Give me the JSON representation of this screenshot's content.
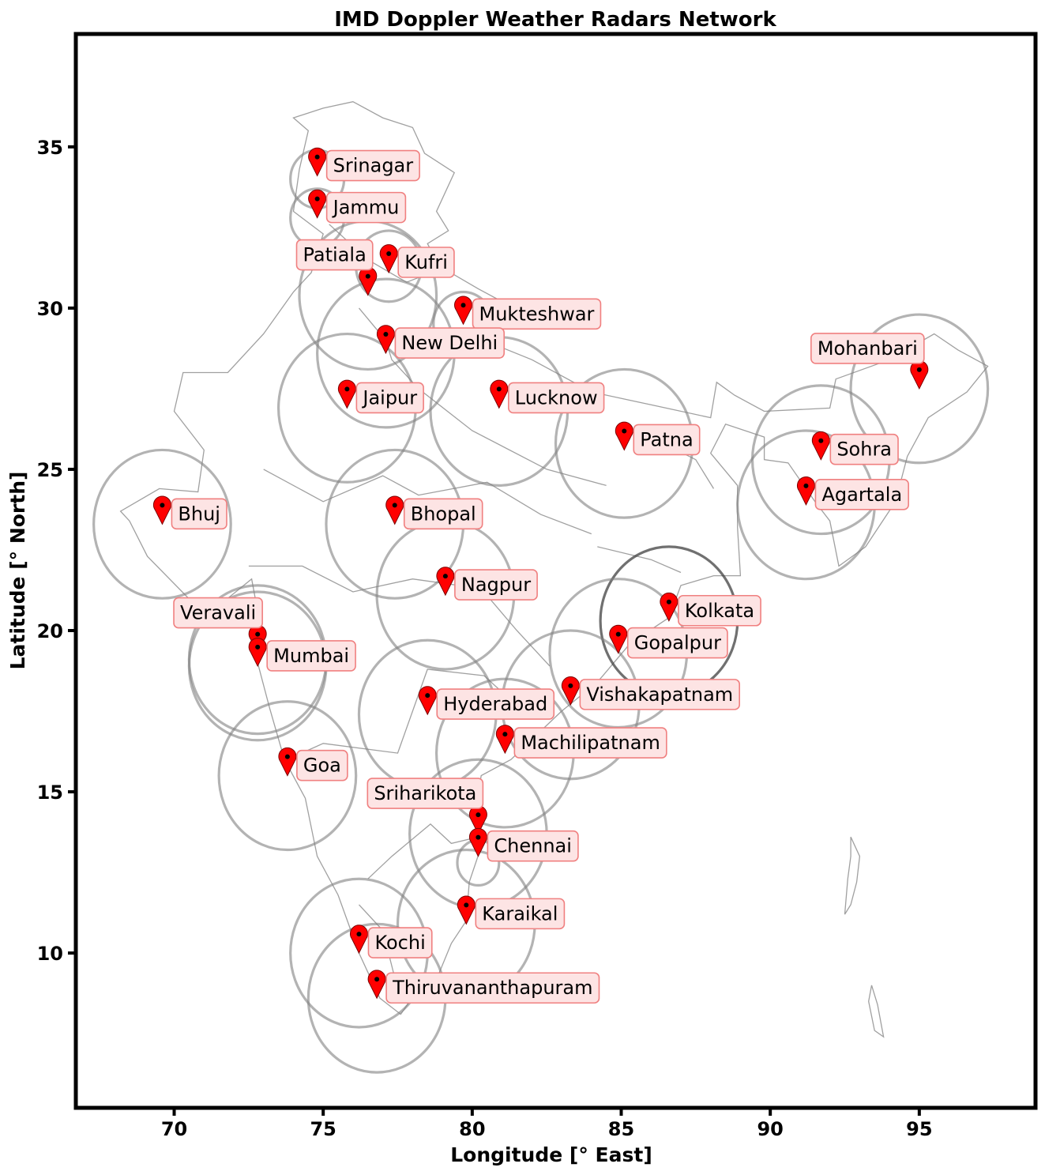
{
  "map": {
    "title": "IMD Doppler Weather Radars Network",
    "xlabel": "Longitude [° East]",
    "ylabel": "Latitude [° North]",
    "x_ticks": [
      "70",
      "75",
      "80",
      "85",
      "90",
      "95"
    ],
    "y_ticks": [
      "10",
      "15",
      "20",
      "25",
      "30",
      "35"
    ],
    "x_tick_values": [
      70,
      75,
      80,
      85,
      90,
      95
    ],
    "y_tick_values": [
      10,
      15,
      20,
      25,
      30,
      35
    ],
    "lon_range": [
      66.7,
      98.9
    ],
    "lat_range": [
      5.2,
      38.5
    ],
    "marker_color": "#ff0000",
    "label_bg_color": "#fde4e4",
    "label_border_color": "#f08080",
    "coverage_color": "#808080",
    "stations": [
      {
        "name": "Srinagar",
        "lon": 74.8,
        "lat": 34.1,
        "label_side": "right"
      },
      {
        "name": "Jammu",
        "lon": 74.8,
        "lat": 32.8,
        "label_side": "right"
      },
      {
        "name": "Patiala",
        "lon": 76.5,
        "lat": 30.4,
        "label_side": "left"
      },
      {
        "name": "Kufri",
        "lon": 77.2,
        "lat": 31.1,
        "label_side": "right"
      },
      {
        "name": "Mukteshwar",
        "lon": 79.7,
        "lat": 29.5,
        "label_side": "right"
      },
      {
        "name": "New Delhi",
        "lon": 77.1,
        "lat": 28.6,
        "label_side": "right"
      },
      {
        "name": "Jaipur",
        "lon": 75.8,
        "lat": 26.9,
        "label_side": "right"
      },
      {
        "name": "Lucknow",
        "lon": 80.9,
        "lat": 26.9,
        "label_side": "right"
      },
      {
        "name": "Patna",
        "lon": 85.1,
        "lat": 25.6,
        "label_side": "right"
      },
      {
        "name": "Mohanbari",
        "lon": 95.0,
        "lat": 27.5,
        "label_side": "left"
      },
      {
        "name": "Sohra",
        "lon": 91.7,
        "lat": 25.3,
        "label_side": "right"
      },
      {
        "name": "Agartala",
        "lon": 91.2,
        "lat": 23.9,
        "label_side": "right"
      },
      {
        "name": "Bhuj",
        "lon": 69.6,
        "lat": 23.3,
        "label_side": "right"
      },
      {
        "name": "Bhopal",
        "lon": 77.4,
        "lat": 23.3,
        "label_side": "right"
      },
      {
        "name": "Nagpur",
        "lon": 79.1,
        "lat": 21.1,
        "label_side": "right"
      },
      {
        "name": "Kolkata",
        "lon": 86.6,
        "lat": 20.3,
        "label_side": "right"
      },
      {
        "name": "Veravali",
        "lon": 72.8,
        "lat": 19.3,
        "label_side": "left"
      },
      {
        "name": "Mumbai",
        "lon": 72.8,
        "lat": 18.9,
        "label_side": "right"
      },
      {
        "name": "Gopalpur",
        "lon": 84.9,
        "lat": 19.3,
        "label_side": "right"
      },
      {
        "name": "Vishakapatnam",
        "lon": 83.3,
        "lat": 17.7,
        "label_side": "right"
      },
      {
        "name": "Hyderabad",
        "lon": 78.5,
        "lat": 17.4,
        "label_side": "right"
      },
      {
        "name": "Machilipatnam",
        "lon": 81.1,
        "lat": 16.2,
        "label_side": "right"
      },
      {
        "name": "Goa",
        "lon": 73.8,
        "lat": 15.5,
        "label_side": "right"
      },
      {
        "name": "Sriharikota",
        "lon": 80.2,
        "lat": 13.7,
        "label_side": "left"
      },
      {
        "name": "Chennai",
        "lon": 80.2,
        "lat": 13.0,
        "label_side": "right"
      },
      {
        "name": "Karaikal",
        "lon": 79.8,
        "lat": 10.9,
        "label_side": "right"
      },
      {
        "name": "Kochi",
        "lon": 76.2,
        "lat": 10.0,
        "label_side": "right"
      },
      {
        "name": "Thiruvananthapuram",
        "lon": 76.8,
        "lat": 8.6,
        "label_side": "right"
      }
    ],
    "coverage_circles": [
      {
        "lon": 74.8,
        "lat": 34.0,
        "radius_deg": 0.9
      },
      {
        "lon": 74.8,
        "lat": 32.8,
        "radius_deg": 0.9
      },
      {
        "lon": 76.5,
        "lat": 30.4,
        "radius_deg": 2.3
      },
      {
        "lon": 77.2,
        "lat": 31.3,
        "radius_deg": 1.1
      },
      {
        "lon": 79.7,
        "lat": 29.5,
        "radius_deg": 1.0
      },
      {
        "lon": 77.1,
        "lat": 28.6,
        "radius_deg": 2.3
      },
      {
        "lon": 75.8,
        "lat": 26.9,
        "radius_deg": 2.3
      },
      {
        "lon": 80.9,
        "lat": 26.8,
        "radius_deg": 2.3
      },
      {
        "lon": 85.1,
        "lat": 25.8,
        "radius_deg": 2.3
      },
      {
        "lon": 95.0,
        "lat": 27.5,
        "radius_deg": 2.3
      },
      {
        "lon": 91.7,
        "lat": 25.3,
        "radius_deg": 2.3
      },
      {
        "lon": 91.2,
        "lat": 23.9,
        "radius_deg": 2.3
      },
      {
        "lon": 69.6,
        "lat": 23.3,
        "radius_deg": 2.3
      },
      {
        "lon": 77.4,
        "lat": 23.3,
        "radius_deg": 2.3
      },
      {
        "lon": 79.1,
        "lat": 21.1,
        "radius_deg": 2.3
      },
      {
        "lon": 86.6,
        "lat": 20.3,
        "radius_deg": 2.3,
        "dark": true
      },
      {
        "lon": 72.8,
        "lat": 19.1,
        "radius_deg": 2.3
      },
      {
        "lon": 72.8,
        "lat": 18.9,
        "radius_deg": 2.3
      },
      {
        "lon": 84.9,
        "lat": 19.3,
        "radius_deg": 2.3
      },
      {
        "lon": 83.3,
        "lat": 17.7,
        "radius_deg": 2.3
      },
      {
        "lon": 78.5,
        "lat": 17.4,
        "radius_deg": 2.3
      },
      {
        "lon": 81.1,
        "lat": 16.2,
        "radius_deg": 2.3
      },
      {
        "lon": 73.8,
        "lat": 15.5,
        "radius_deg": 2.3
      },
      {
        "lon": 80.2,
        "lat": 13.7,
        "radius_deg": 2.3
      },
      {
        "lon": 80.2,
        "lat": 12.8,
        "radius_deg": 0.7
      },
      {
        "lon": 79.8,
        "lat": 10.9,
        "radius_deg": 2.3
      },
      {
        "lon": 76.2,
        "lat": 10.0,
        "radius_deg": 2.3
      },
      {
        "lon": 76.8,
        "lat": 8.6,
        "radius_deg": 2.3
      }
    ],
    "outline": [
      [
        74.5,
        35.5
      ],
      [
        74.0,
        35.9
      ],
      [
        75.0,
        36.2
      ],
      [
        76.0,
        36.4
      ],
      [
        77.0,
        35.9
      ],
      [
        78.0,
        35.6
      ],
      [
        78.4,
        34.8
      ],
      [
        79.4,
        34.2
      ],
      [
        78.8,
        33.0
      ],
      [
        79.2,
        32.4
      ],
      [
        78.5,
        32.0
      ],
      [
        78.9,
        31.3
      ],
      [
        80.2,
        30.6
      ],
      [
        81.0,
        30.2
      ],
      [
        80.4,
        29.0
      ],
      [
        82.0,
        28.4
      ],
      [
        84.0,
        27.4
      ],
      [
        86.0,
        27.0
      ],
      [
        88.0,
        26.6
      ],
      [
        88.2,
        27.7
      ],
      [
        88.8,
        27.3
      ],
      [
        89.8,
        26.8
      ],
      [
        92.0,
        26.9
      ],
      [
        92.2,
        27.8
      ],
      [
        94.0,
        28.4
      ],
      [
        95.5,
        29.2
      ],
      [
        96.3,
        28.7
      ],
      [
        97.3,
        28.2
      ],
      [
        96.6,
        27.4
      ],
      [
        95.3,
        26.6
      ],
      [
        94.6,
        25.4
      ],
      [
        94.2,
        24.0
      ],
      [
        93.2,
        22.6
      ],
      [
        92.3,
        22.0
      ],
      [
        92.0,
        23.4
      ],
      [
        91.5,
        24.0
      ],
      [
        90.6,
        25.2
      ],
      [
        89.8,
        25.3
      ],
      [
        89.8,
        26.0
      ],
      [
        88.5,
        26.4
      ],
      [
        88.0,
        25.5
      ],
      [
        88.9,
        24.5
      ],
      [
        88.9,
        23.2
      ],
      [
        89.0,
        21.7
      ],
      [
        88.1,
        21.7
      ],
      [
        87.0,
        21.4
      ],
      [
        86.6,
        20.4
      ],
      [
        85.3,
        19.6
      ],
      [
        84.2,
        18.4
      ],
      [
        83.0,
        17.5
      ],
      [
        82.2,
        16.8
      ],
      [
        81.3,
        16.0
      ],
      [
        80.3,
        15.5
      ],
      [
        80.1,
        14.4
      ],
      [
        80.3,
        13.3
      ],
      [
        79.9,
        12.2
      ],
      [
        79.8,
        11.0
      ],
      [
        79.3,
        10.3
      ],
      [
        78.9,
        9.4
      ],
      [
        78.2,
        8.9
      ],
      [
        77.6,
        8.1
      ],
      [
        76.9,
        8.6
      ],
      [
        76.2,
        10.0
      ],
      [
        75.5,
        11.8
      ],
      [
        74.8,
        13.0
      ],
      [
        74.4,
        14.8
      ],
      [
        73.7,
        16.0
      ],
      [
        73.2,
        17.6
      ],
      [
        72.8,
        19.0
      ],
      [
        72.8,
        20.6
      ],
      [
        72.6,
        21.6
      ],
      [
        71.8,
        21.0
      ],
      [
        70.8,
        20.7
      ],
      [
        69.1,
        22.3
      ],
      [
        68.5,
        23.4
      ],
      [
        68.2,
        23.7
      ],
      [
        69.5,
        24.4
      ],
      [
        70.8,
        24.3
      ],
      [
        71.0,
        25.6
      ],
      [
        70.0,
        26.8
      ],
      [
        70.3,
        28.0
      ],
      [
        71.8,
        28.0
      ],
      [
        73.0,
        29.2
      ],
      [
        74.0,
        30.5
      ],
      [
        74.6,
        31.1
      ],
      [
        75.0,
        32.3
      ],
      [
        74.0,
        33.0
      ],
      [
        74.2,
        34.3
      ]
    ],
    "inner_borders": [
      [
        [
          75.2,
          32.6
        ],
        [
          76.5,
          31.5
        ],
        [
          77.8,
          30.8
        ],
        [
          78.9,
          31.2
        ]
      ],
      [
        [
          76.2,
          30.0
        ],
        [
          77.1,
          29.0
        ],
        [
          77.3,
          28.4
        ],
        [
          78.2,
          27.5
        ],
        [
          80.0,
          26.2
        ],
        [
          82.5,
          25.0
        ],
        [
          84.5,
          24.5
        ]
      ],
      [
        [
          73.0,
          25.0
        ],
        [
          75.0,
          24.0
        ],
        [
          77.0,
          24.8
        ],
        [
          78.2,
          24.2
        ],
        [
          80.5,
          24.6
        ],
        [
          82.3,
          23.6
        ],
        [
          84.0,
          23.0
        ]
      ],
      [
        [
          72.5,
          22.0
        ],
        [
          74.3,
          22.0
        ],
        [
          76.0,
          21.2
        ],
        [
          78.0,
          21.6
        ],
        [
          80.3,
          21.3
        ],
        [
          81.5,
          20.0
        ],
        [
          82.6,
          18.9
        ]
      ],
      [
        [
          73.8,
          16.0
        ],
        [
          75.0,
          16.5
        ],
        [
          77.5,
          16.2
        ],
        [
          78.5,
          18.8
        ],
        [
          80.4,
          18.6
        ],
        [
          81.7,
          17.5
        ]
      ],
      [
        [
          76.5,
          12.3
        ],
        [
          77.3,
          13.0
        ],
        [
          78.6,
          14.0
        ],
        [
          79.3,
          13.4
        ],
        [
          80.2,
          13.6
        ]
      ],
      [
        [
          76.2,
          11.5
        ],
        [
          77.0,
          10.7
        ],
        [
          77.3,
          9.6
        ],
        [
          77.6,
          8.5
        ]
      ],
      [
        [
          84.2,
          22.6
        ],
        [
          86.0,
          22.2
        ],
        [
          87.0,
          21.8
        ]
      ],
      [
        [
          86.0,
          26.0
        ],
        [
          87.5,
          25.3
        ],
        [
          88.1,
          24.4
        ]
      ]
    ],
    "islands": [
      [
        [
          92.7,
          13.6
        ],
        [
          93.0,
          13.0
        ],
        [
          92.9,
          12.2
        ],
        [
          92.7,
          11.5
        ],
        [
          92.5,
          11.2
        ],
        [
          92.6,
          12.3
        ],
        [
          92.7,
          13.0
        ]
      ],
      [
        [
          93.4,
          9.0
        ],
        [
          93.6,
          8.4
        ],
        [
          93.8,
          7.4
        ],
        [
          93.5,
          7.6
        ],
        [
          93.3,
          8.5
        ]
      ]
    ]
  }
}
